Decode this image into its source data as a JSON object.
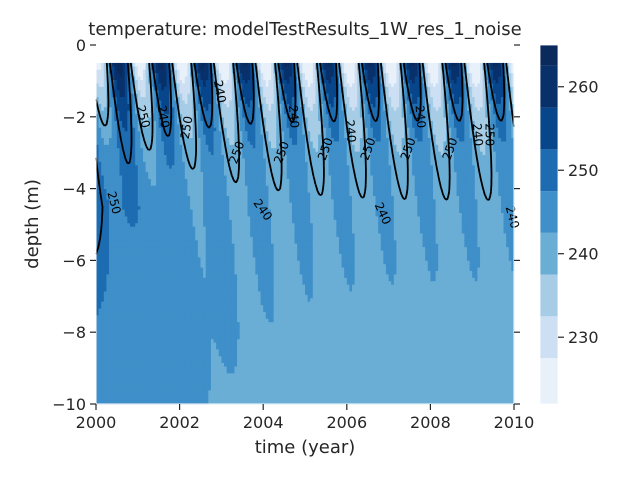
{
  "chart_data": {
    "type": "heatmap",
    "title": "temperature: modelTestResults_1W_res_1_noise",
    "xlabel": "time (year)",
    "ylabel": "depth (m)",
    "xlim": [
      2000,
      2010
    ],
    "ylim": [
      -10,
      0
    ],
    "x_ticks": [
      "2000",
      "2002",
      "2004",
      "2006",
      "2008",
      "2010"
    ],
    "y_ticks": [
      "0",
      "−2",
      "−4",
      "−6",
      "−8",
      "−10"
    ],
    "colorbar": {
      "levels": [
        222.5,
        227.5,
        232.5,
        237.5,
        242.5,
        247.5,
        252.5,
        257.5,
        262.5,
        265
      ],
      "colors": [
        "#e8f1fa",
        "#cddff2",
        "#a7cde6",
        "#6aaed6",
        "#3f8fc9",
        "#1d6cb1",
        "#08468c",
        "#08306b",
        "#0a2a5e"
      ],
      "ticks": [
        "230",
        "240",
        "250",
        "260"
      ],
      "tick_values": [
        230,
        240,
        250,
        260
      ],
      "range": [
        222,
        265
      ]
    },
    "field": {
      "surface_depth": -0.5,
      "deep_value": 242,
      "cycle_period_years": 1,
      "cold_peak_time_fraction": 0.55
    },
    "contour_labels": [
      {
        "text": "250",
        "x": 2000.42,
        "y": -4.4,
        "angle": 75
      },
      {
        "text": "250",
        "x": 2001.12,
        "y": -2.0,
        "angle": 75
      },
      {
        "text": "240",
        "x": 2001.6,
        "y": -2.0,
        "angle": 80
      },
      {
        "text": "250",
        "x": 2002.18,
        "y": -2.3,
        "angle": -80
      },
      {
        "text": "240",
        "x": 2002.95,
        "y": -1.3,
        "angle": 80
      },
      {
        "text": "250",
        "x": 2003.38,
        "y": -3.0,
        "angle": -70
      },
      {
        "text": "250",
        "x": 2004.45,
        "y": -3.0,
        "angle": -70
      },
      {
        "text": "240",
        "x": 2003.98,
        "y": -4.6,
        "angle": 55
      },
      {
        "text": "240",
        "x": 2004.72,
        "y": -2.0,
        "angle": 85
      },
      {
        "text": "250",
        "x": 2005.5,
        "y": -2.9,
        "angle": -70
      },
      {
        "text": "240",
        "x": 2006.08,
        "y": -2.4,
        "angle": 85
      },
      {
        "text": "250",
        "x": 2006.52,
        "y": -2.9,
        "angle": -70
      },
      {
        "text": "240",
        "x": 2006.85,
        "y": -4.7,
        "angle": 65
      },
      {
        "text": "250",
        "x": 2007.48,
        "y": -2.9,
        "angle": -70
      },
      {
        "text": "240",
        "x": 2007.75,
        "y": -2.0,
        "angle": 85
      },
      {
        "text": "250",
        "x": 2008.48,
        "y": -2.9,
        "angle": -70
      },
      {
        "text": "240",
        "x": 2009.12,
        "y": -2.5,
        "angle": 85
      },
      {
        "text": "250",
        "x": 2009.4,
        "y": -2.5,
        "angle": 90
      },
      {
        "text": "240",
        "x": 2009.95,
        "y": -4.8,
        "angle": 75
      }
    ]
  }
}
